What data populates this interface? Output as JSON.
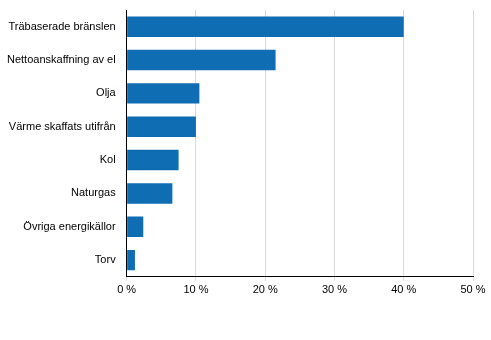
{
  "chart_data": {
    "type": "bar",
    "orientation": "horizontal",
    "categories": [
      "Träbaserade bränslen",
      "Nettoanskaffning av el",
      "Olja",
      "Värme skaffats utifrån",
      "Kol",
      "Naturgas",
      "Övriga energikällor",
      "Torv"
    ],
    "values": [
      40,
      21.5,
      10.5,
      10,
      7.5,
      6.6,
      2.4,
      1.2
    ],
    "color": "#0f6db3",
    "xlim": [
      0,
      50
    ],
    "xticks": [
      {
        "value": 0,
        "label": "0 %"
      },
      {
        "value": 10,
        "label": "10 %"
      },
      {
        "value": 20,
        "label": "20 %"
      },
      {
        "value": 30,
        "label": "30 %"
      },
      {
        "value": 40,
        "label": "40 %"
      },
      {
        "value": 50,
        "label": "50 %"
      }
    ],
    "grid": true
  }
}
